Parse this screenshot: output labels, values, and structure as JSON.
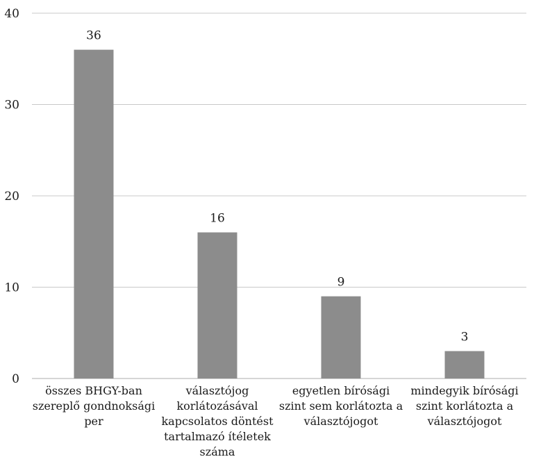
{
  "chart_data": {
    "type": "bar",
    "title": "",
    "xlabel": "",
    "ylabel": "",
    "ylim": [
      0,
      40
    ],
    "yticks": [
      0,
      10,
      20,
      30,
      40
    ],
    "grid": true,
    "legend": "none",
    "bar_color": "#8c8c8c",
    "grid_color": "#c8c8c8",
    "categories": [
      [
        "összes BHGY-ban",
        "szereplő gondnoksági",
        "per"
      ],
      [
        "választójog",
        "korlátozásával",
        "kapcsolatos döntést",
        "tartalmazó ítéletek",
        "száma"
      ],
      [
        "egyetlen bírósági",
        "szint sem korlátozta a",
        "választójogot"
      ],
      [
        "mindegyik bírósági",
        "szint korlátozta a",
        "választójogot"
      ]
    ],
    "values": [
      36,
      16,
      9,
      3
    ],
    "data_labels": [
      "36",
      "16",
      "9",
      "3"
    ]
  }
}
